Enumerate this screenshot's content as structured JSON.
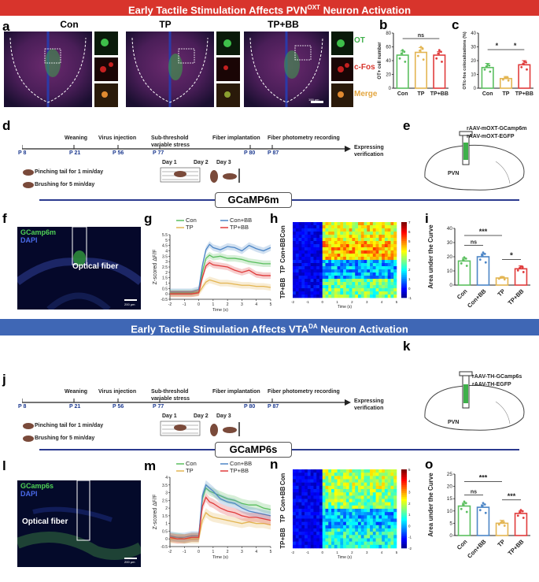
{
  "colors": {
    "red_banner": "#d8342c",
    "blue_banner": "#3f67b5",
    "con": "#5bbf5f",
    "conbb": "#4d86c6",
    "tp": "#e3b552",
    "tpbb": "#e03c3c"
  },
  "banner_top": {
    "text": "Early Tactile Stimulation Affects PVN",
    "sup": "OXT",
    "tail": " Neuron Activation"
  },
  "banner_mid": {
    "text": "Early Tactile Stimulation Affects VTA",
    "sup": "DA",
    "tail": " Neuron Activation"
  },
  "panels": {
    "a": "a",
    "b": "b",
    "c": "c",
    "d": "d",
    "e": "e",
    "f": "f",
    "g": "g",
    "h": "h",
    "i": "i",
    "j": "j",
    "k": "k",
    "l": "l",
    "m": "m",
    "n": "n",
    "o": "o"
  },
  "panel_a": {
    "groups": [
      "Con",
      "TP",
      "TP+BB"
    ],
    "channels": [
      "OT",
      "c-Fos",
      "Merge"
    ],
    "scale": "100 μm"
  },
  "panel_b": {
    "ylabel": "OT+ cell number",
    "ns": "ns",
    "ticks": [
      "0",
      "20",
      "40",
      "60",
      "80"
    ]
  },
  "panel_c": {
    "ylabel": "OT/c-fos colocalizations (%)",
    "star": "*",
    "ticks": [
      "0",
      "10",
      "20",
      "30",
      "40"
    ]
  },
  "timeline": {
    "p8": "P 8",
    "p21": "P 21",
    "p56": "P 56",
    "p77": "P 77",
    "p80": "P 80",
    "p87": "P 87",
    "weaning": "Weaning",
    "virus": "Virus injection",
    "stress1": "Sub-threshold",
    "stress2": "variable stress",
    "fiber": "Fiber implantation",
    "photometry": "Fiber photometry recording",
    "expr1": "Expressing",
    "expr2": "verification",
    "pinch": "Pinching tail for 1 min/day",
    "brush": "Brushing for 5 min/day",
    "day1": "Day 1",
    "day2": "Day 2",
    "day3": "Day 3"
  },
  "panel_e": {
    "virus1": "rAAV-mOXT-GCamp6m",
    "virus2": "rAAV-mOXT-EGFP",
    "region": "PVN"
  },
  "panel_k": {
    "virus1": "rAAV-TH-GCamp6s",
    "virus2": "rAAV-TH-EGFP",
    "region": "PVN"
  },
  "section1": "GCaMP6m",
  "section2": "GCaMP6s",
  "panel_f": {
    "l1": "GCamp6m",
    "l2": "DAPI",
    "fiber": "Optical fiber",
    "scale": "200 μm"
  },
  "panel_l": {
    "l1": "GCamp6s",
    "l2": "DAPI",
    "fiber": "Optical fiber",
    "scale": "200 μm"
  },
  "panel_h": {
    "rows": [
      "Con",
      "Con+BB",
      "TP",
      "TP+BB"
    ],
    "xlabel": "Time (s)",
    "cbar": [
      "7",
      "6",
      "5",
      "4",
      "3",
      "2",
      "1",
      "0",
      "-1"
    ]
  },
  "panel_n": {
    "rows": [
      "Con",
      "Con+BB",
      "TP",
      "TP+BB"
    ],
    "xlabel": "Time (s)",
    "cbar": [
      "5",
      "4",
      "3",
      "2",
      "1",
      "0",
      "-1",
      "-2"
    ]
  },
  "chart_data": [
    {
      "panel": "b",
      "type": "bar",
      "categories": [
        "Con",
        "TP",
        "TP+BB"
      ],
      "values": [
        48,
        52,
        48
      ],
      "errors": [
        6,
        7,
        5
      ],
      "ylabel": "OT+ cell number",
      "ylim": [
        0,
        80
      ],
      "annotation": "ns (Con vs TP+BB)"
    },
    {
      "panel": "c",
      "type": "bar",
      "categories": [
        "Con",
        "TP",
        "TP+BB"
      ],
      "values": [
        15,
        7,
        17
      ],
      "errors": [
        3,
        1.5,
        3
      ],
      "ylabel": "OT/c-fos colocalizations (%)",
      "ylim": [
        0,
        40
      ],
      "annotation": "* (Con vs TP), * (TP vs TP+BB)"
    },
    {
      "panel": "g",
      "type": "line",
      "xlabel": "Time (s)",
      "ylabel": "Z-scored ΔF/F",
      "xlim": [
        -2,
        5
      ],
      "ylim": [
        -0.5,
        5.5
      ],
      "legend": [
        "Con",
        "Con+BB",
        "TP",
        "TP+BB"
      ],
      "x": [
        -2,
        -1.5,
        -1,
        -0.5,
        0,
        0.25,
        0.5,
        0.75,
        1,
        1.5,
        2,
        2.5,
        3,
        3.5,
        4,
        4.5,
        5
      ],
      "series": [
        {
          "name": "Con",
          "values": [
            0.1,
            0.1,
            0.1,
            0.1,
            0.2,
            2.0,
            3.3,
            3.6,
            3.4,
            3.5,
            3.3,
            3.3,
            3.2,
            3.0,
            2.9,
            2.8,
            2.8
          ]
        },
        {
          "name": "Con+BB",
          "values": [
            0.2,
            0.2,
            0.2,
            0.2,
            0.4,
            2.6,
            4.1,
            4.6,
            4.3,
            4.1,
            4.4,
            4.3,
            4.0,
            4.5,
            4.2,
            4.0,
            4.3
          ]
        },
        {
          "name": "TP",
          "values": [
            0,
            0,
            0,
            0,
            0.1,
            0.6,
            1.1,
            1.3,
            1.2,
            1.0,
            1.0,
            0.9,
            0.8,
            0.8,
            0.7,
            0.7,
            0.6
          ]
        },
        {
          "name": "TP+BB",
          "values": [
            0,
            0,
            0,
            0,
            0.1,
            1.5,
            2.6,
            2.9,
            2.7,
            2.6,
            2.5,
            2.2,
            2.0,
            2.2,
            1.8,
            1.7,
            1.7
          ]
        }
      ]
    },
    {
      "panel": "i",
      "type": "bar",
      "categories": [
        "Con",
        "Con+BB",
        "TP",
        "TP+BB"
      ],
      "values": [
        17,
        20,
        5,
        11.5
      ],
      "errors": [
        2,
        2,
        1,
        2
      ],
      "ylabel": "Area under the Curve",
      "ylim": [
        0,
        40
      ],
      "annotation": "ns (Con vs Con+BB), *** (Con vs TP), * (TP vs TP+BB)"
    },
    {
      "panel": "m",
      "type": "line",
      "xlabel": "Time (s)",
      "ylabel": "Z-scored ΔF/F",
      "xlim": [
        -2,
        5
      ],
      "ylim": [
        -0.5,
        4
      ],
      "legend": [
        "Con",
        "Con+BB",
        "TP",
        "TP+BB"
      ],
      "x": [
        -2,
        -1.5,
        -1,
        -0.5,
        0,
        0.25,
        0.5,
        0.75,
        1,
        1.5,
        2,
        2.5,
        3,
        3.5,
        4,
        4.5,
        5
      ],
      "series": [
        {
          "name": "Con",
          "values": [
            0.1,
            0.1,
            0,
            0.1,
            0.1,
            2.6,
            3.3,
            3.1,
            3.0,
            2.8,
            2.6,
            2.5,
            2.3,
            2.2,
            2.2,
            2.0,
            1.9
          ]
        },
        {
          "name": "Con+BB",
          "values": [
            0.2,
            0.1,
            0.1,
            0.2,
            0.2,
            2.8,
            3.5,
            3.3,
            3.1,
            2.6,
            2.4,
            2.3,
            2.0,
            1.8,
            1.7,
            1.6,
            1.5
          ]
        },
        {
          "name": "TP",
          "values": [
            0,
            0,
            0,
            0,
            0,
            1.2,
            1.7,
            1.5,
            1.4,
            1.3,
            1.2,
            1.1,
            1.0,
            1.1,
            1.0,
            1.0,
            0.9
          ]
        },
        {
          "name": "TP+BB",
          "values": [
            0.1,
            0,
            0,
            0.1,
            0.1,
            2.1,
            2.7,
            2.4,
            2.3,
            2.0,
            1.8,
            1.7,
            1.5,
            1.4,
            1.4,
            1.3,
            1.2
          ]
        }
      ]
    },
    {
      "panel": "o",
      "type": "bar",
      "categories": [
        "Con",
        "Con+BB",
        "TP",
        "TP+BB"
      ],
      "values": [
        12,
        11.5,
        5,
        9
      ],
      "errors": [
        1.2,
        1,
        1.2,
        1
      ],
      "ylabel": "Area under the Curve",
      "ylim": [
        0,
        25
      ],
      "annotation": "ns (Con vs Con+BB), *** (Con vs TP), *** (TP vs TP+BB)"
    }
  ]
}
